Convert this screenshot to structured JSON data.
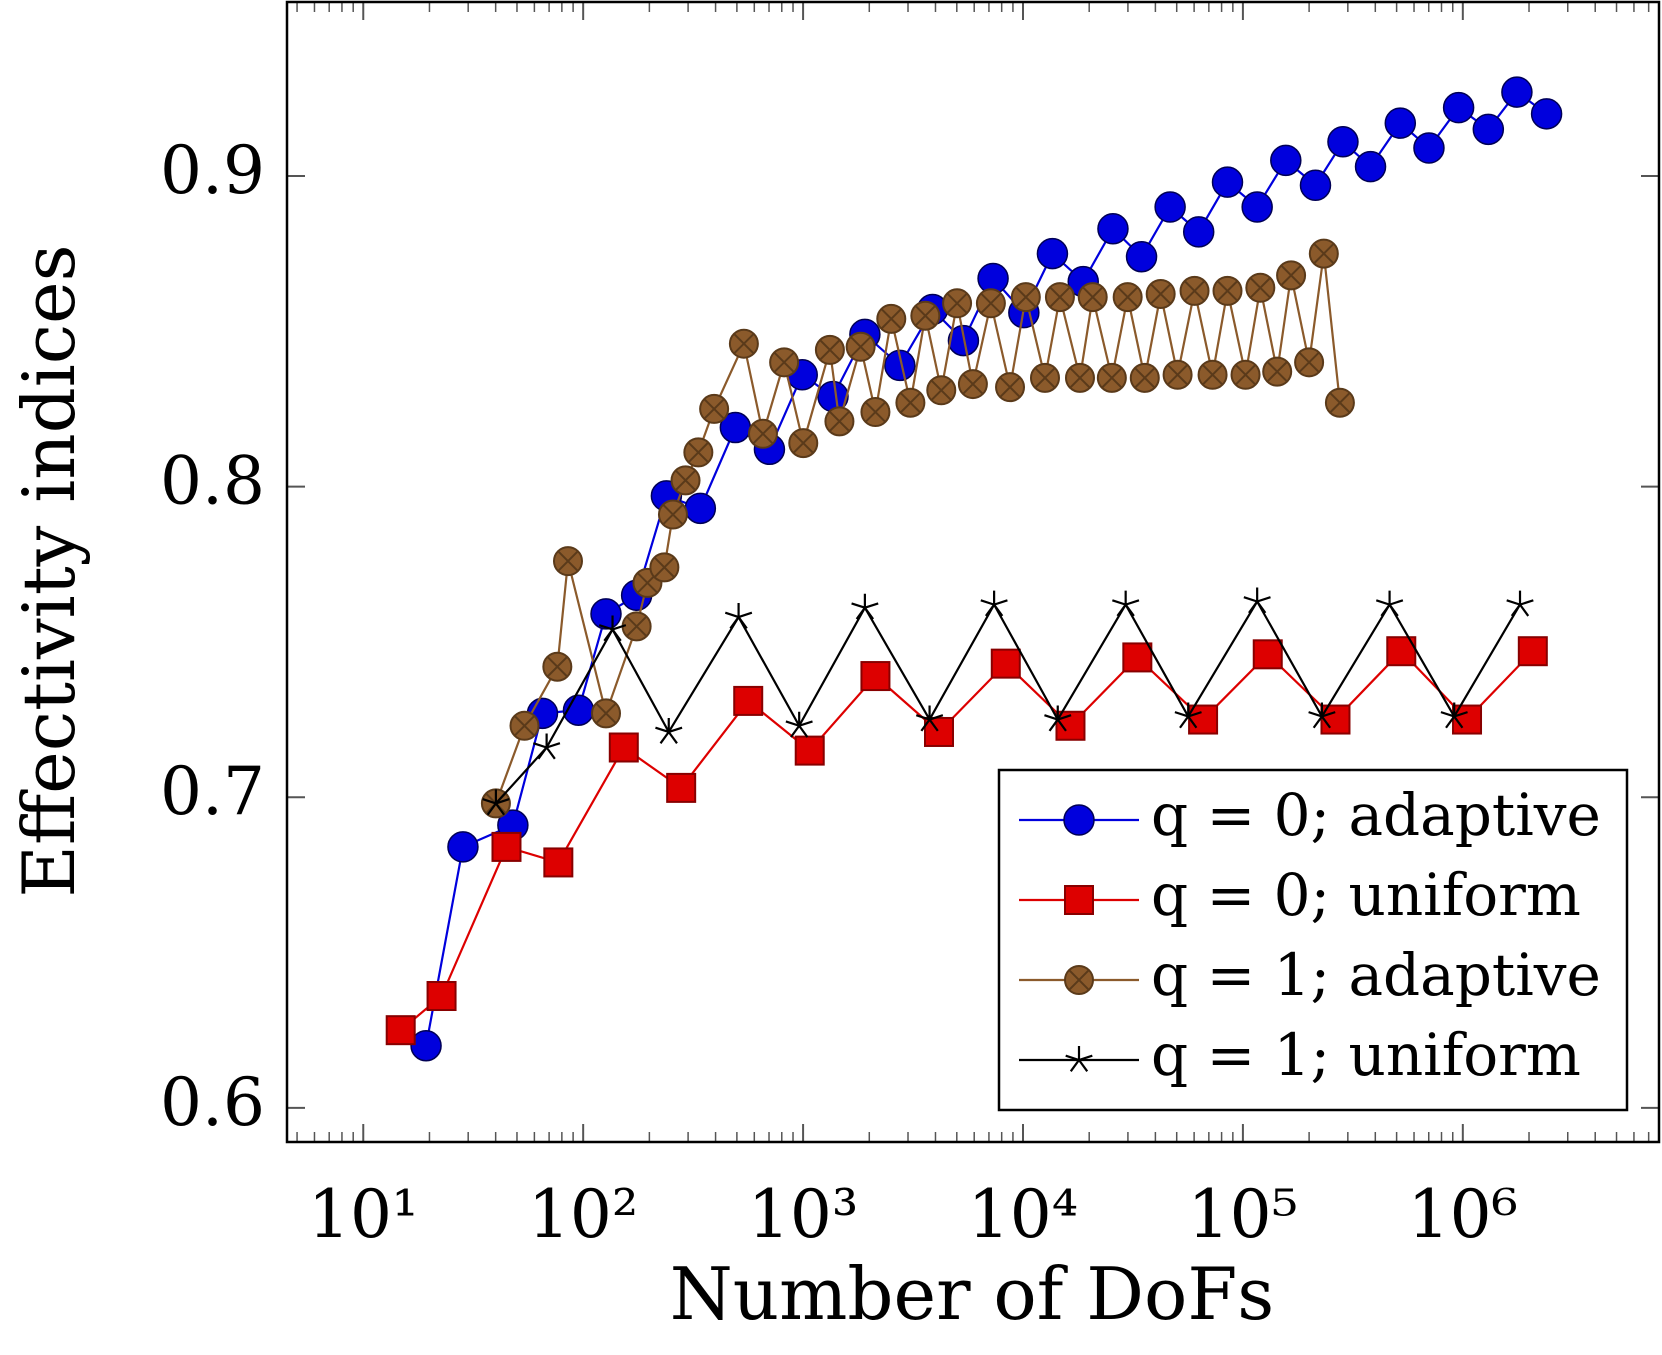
{
  "chart_data": {
    "type": "line",
    "xlabel": "Number of DoFs",
    "ylabel": "Effectivity indices",
    "xscale": "log",
    "xlim": [
      4.5,
      7800000
    ],
    "ylim": [
      0.589,
      0.956
    ],
    "xticks": [
      {
        "value": 10,
        "label": "10¹"
      },
      {
        "value": 100,
        "label": "10²"
      },
      {
        "value": 1000,
        "label": "10³"
      },
      {
        "value": 10000,
        "label": "10⁴"
      },
      {
        "value": 100000,
        "label": "10⁵"
      },
      {
        "value": 1000000,
        "label": "10⁶"
      }
    ],
    "yticks": [
      {
        "value": 0.6,
        "label": "0.6"
      },
      {
        "value": 0.7,
        "label": "0.7"
      },
      {
        "value": 0.8,
        "label": "0.8"
      },
      {
        "value": 0.9,
        "label": "0.9"
      }
    ],
    "legend": "lower right",
    "series": [
      {
        "name": "q = 0; adaptive",
        "color": "#0000dd",
        "marker": "circle",
        "x": [
          19.3,
          28.4,
          47.9,
          65.3,
          95.2,
          127,
          175,
          239,
          341,
          492,
          703,
          991,
          1368,
          1910,
          2754,
          3880,
          5360,
          7310,
          10090,
          13610,
          18790,
          25650,
          34600,
          46670,
          62950,
          85100,
          116100,
          156700,
          213800,
          285100,
          380500,
          519600,
          701500,
          957000,
          1306000,
          1762000,
          2404000
        ],
        "values": [
          0.62,
          0.684,
          0.691,
          0.727,
          0.728,
          0.759,
          0.765,
          0.797,
          0.793,
          0.819,
          0.812,
          0.836,
          0.829,
          0.849,
          0.839,
          0.857,
          0.847,
          0.867,
          0.856,
          0.875,
          0.866,
          0.883,
          0.874,
          0.89,
          0.882,
          0.898,
          0.89,
          0.905,
          0.897,
          0.911,
          0.903,
          0.917,
          0.909,
          0.922,
          0.915,
          0.927,
          0.92
        ]
      },
      {
        "name": "q = 0; uniform",
        "color": "#dd0000",
        "marker": "square",
        "x": [
          14.8,
          22.7,
          44.8,
          77.1,
          153,
          279,
          563,
          1072,
          2133,
          4150,
          8350,
          16440,
          33110,
          65900,
          129700,
          263600,
          525000,
          1045000,
          2081000
        ],
        "values": [
          0.625,
          0.636,
          0.684,
          0.679,
          0.716,
          0.703,
          0.731,
          0.715,
          0.739,
          0.721,
          0.743,
          0.723,
          0.745,
          0.725,
          0.746,
          0.725,
          0.747,
          0.725,
          0.747
        ]
      },
      {
        "name": "q = 1; adaptive",
        "color": "#8b5a2b",
        "marker": "otimes",
        "x": [
          40.1,
          54.1,
          76.3,
          85.3,
          127,
          175,
          196,
          234,
          256,
          292,
          334,
          394,
          538,
          657,
          820,
          1002,
          1324,
          1463,
          1827,
          2133,
          2518,
          3076,
          3597,
          4250,
          5015,
          5918,
          7145,
          8730,
          10300,
          12590,
          14720,
          18160,
          20750,
          25350,
          29920,
          35790,
          42270,
          50470,
          60260,
          72780,
          85100,
          102800,
          120000,
          143200,
          165600,
          200000,
          233300,
          276100
        ],
        "values": [
          0.698,
          0.723,
          0.742,
          0.776,
          0.727,
          0.755,
          0.769,
          0.774,
          0.791,
          0.802,
          0.811,
          0.825,
          0.846,
          0.817,
          0.84,
          0.814,
          0.844,
          0.821,
          0.845,
          0.824,
          0.854,
          0.827,
          0.855,
          0.831,
          0.859,
          0.833,
          0.859,
          0.832,
          0.861,
          0.835,
          0.861,
          0.835,
          0.861,
          0.835,
          0.861,
          0.835,
          0.862,
          0.836,
          0.863,
          0.836,
          0.863,
          0.836,
          0.864,
          0.837,
          0.868,
          0.84,
          0.875,
          0.827
        ]
      },
      {
        "name": "q = 1; uniform",
        "color": "#000000",
        "marker": "star",
        "x": [
          40.1,
          68.2,
          136,
          245,
          509,
          960,
          1910,
          3760,
          7390,
          14390,
          29300,
          56400,
          116100,
          228700,
          464500,
          914000,
          1820000
        ],
        "values": [
          0.698,
          0.716,
          0.754,
          0.721,
          0.758,
          0.723,
          0.761,
          0.725,
          0.762,
          0.725,
          0.762,
          0.726,
          0.763,
          0.726,
          0.762,
          0.726,
          0.762
        ]
      }
    ]
  }
}
